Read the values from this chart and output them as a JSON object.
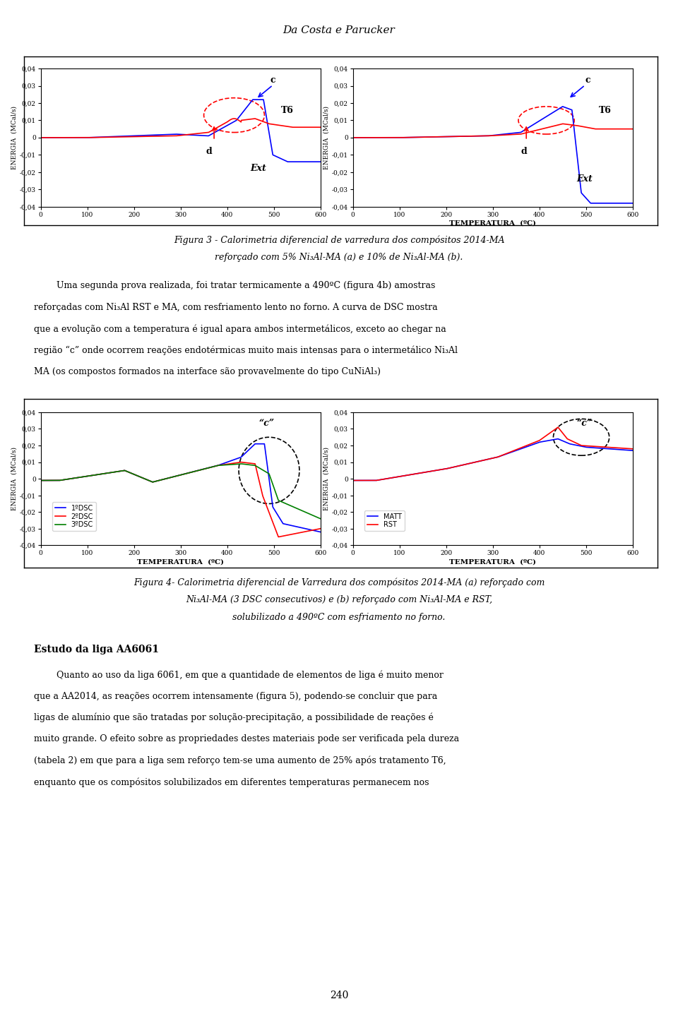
{
  "page_title": "Da Costa e Parucker",
  "fig3_caption_line1": "Figura 3 - Calorimetria diferencial de varredura dos compósitos 2014-MA",
  "fig3_caption_line2": "reforçado com 5% Ni₃Al-MA (a) e 10% de Ni₃Al-MA (b).",
  "fig4_caption_line1": "Figura 4- Calorimetria diferencial de Varredura dos compósitos 2014-MA (a) reforçado com",
  "fig4_caption_line2": "Ni₃Al-MA (3 DSC consecutivos) e (b) reforçado com Ni₃Al-MA e RST,",
  "fig4_caption_line3": "solubilizado a 490ºC com esfriamento no forno.",
  "section_title": "Estudo da liga AA6061",
  "para_indent_line": "        Quanto ao uso da liga 6061, em que a quantidade de elementos de liga é muito menor",
  "body_text_lines": [
    "que a AA2014, as reações ocorrem intensamente (figura 5), podendo-se concluir que para",
    "ligas de alumínio que são tratadas por solução-precipitação, a possibilidade de reações é",
    "muito grande. O efeito sobre as propriedades destes materiais pode ser verificada pela dureza",
    "(tabela 2) em que para a liga sem reforço tem-se uma aumento de 25% após tratamento T6,",
    "enquanto que os compósitos solubilizados em diferentes temperaturas permanecem nos"
  ],
  "para2_lines": [
    "        Uma segunda prova realizada, foi tratar termicamente a 490ºC (figura 4b) amostras",
    "reforçadas com Ni₃Al RST e MA, com resfriamento lento no forno. A curva de DSC mostra",
    "que a evolução com a temperatura é igual apara ambos intermetálicos, exceto ao chegar na",
    "região “c” onde ocorrem reações endotérmicas muito mais intensas para o intermetálico Ni₃Al",
    "MA (os compostos formados na interface são provavelmente do tipo CuNiAl₃)"
  ],
  "ylabel": "ENERGIA  (MCal/s)",
  "xlabel": "TEMPERATURA  (ºC)",
  "ylim": [
    -0.04,
    0.04
  ],
  "ytick_labels": [
    "-0,04",
    "-0,03",
    "-0,02",
    "-0,01",
    "0",
    "0,01",
    "0,02",
    "0,03",
    "0,04"
  ],
  "ytick_vals": [
    -0.04,
    -0.03,
    -0.02,
    -0.01,
    0,
    0.01,
    0.02,
    0.03,
    0.04
  ],
  "xtick_labels": [
    "0",
    "100",
    "200",
    "300",
    "400",
    "500",
    "600"
  ],
  "xtick_vals": [
    0,
    100,
    200,
    300,
    400,
    500,
    600
  ],
  "xlim": [
    0,
    600
  ],
  "page_number": "240",
  "bg_color": "#ffffff"
}
